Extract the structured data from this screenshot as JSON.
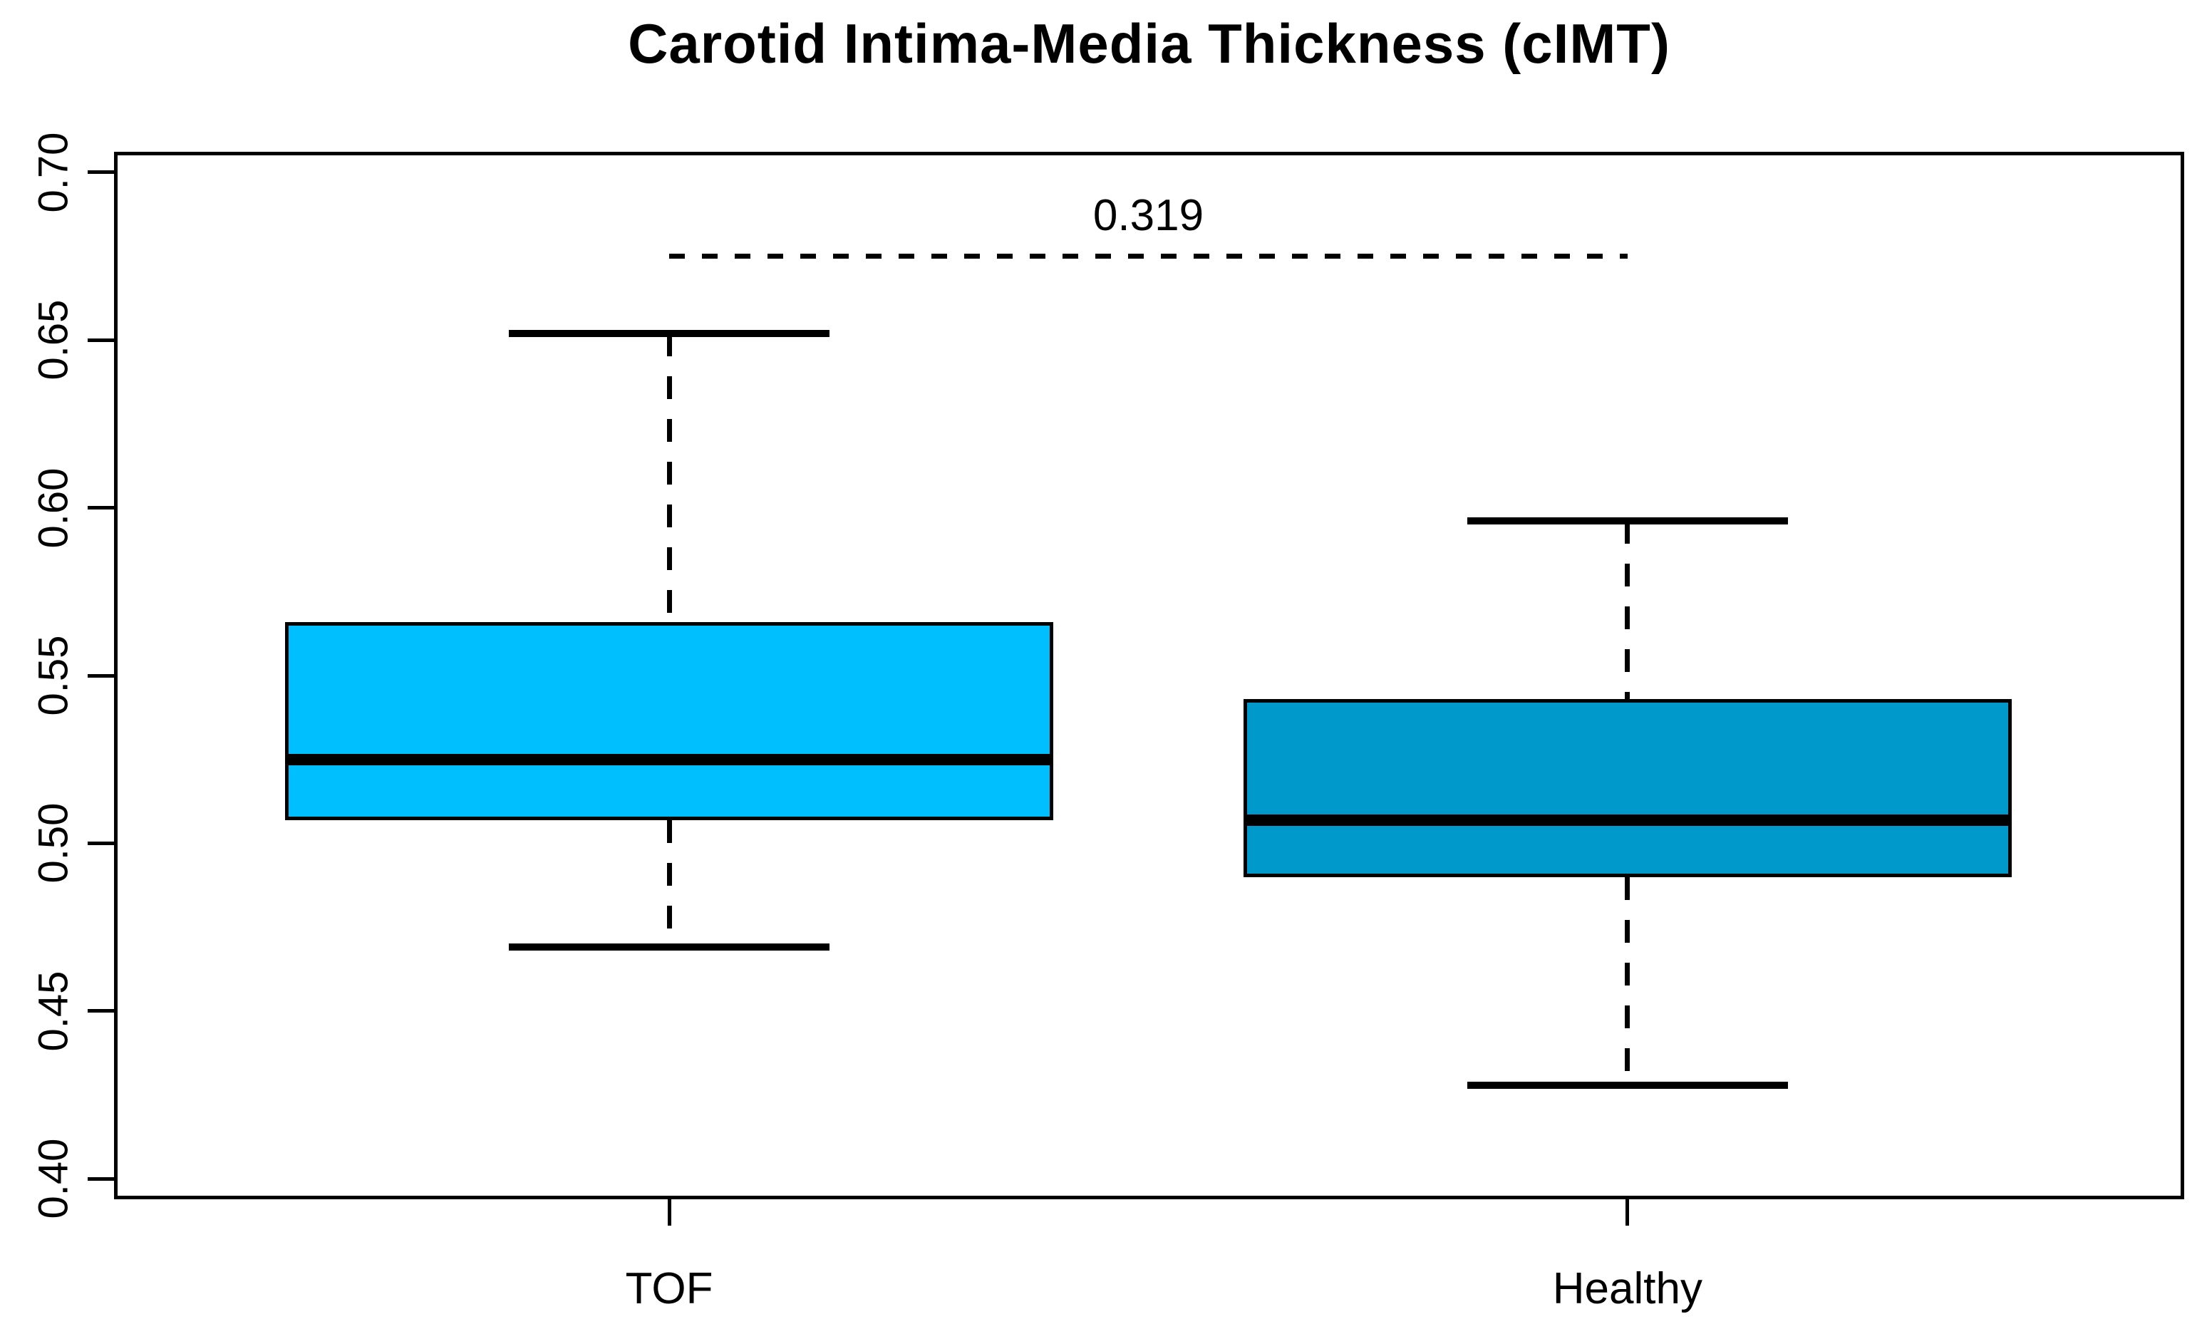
{
  "chart_data": {
    "type": "boxplot",
    "title": "Carotid Intima-Media Thickness (cIMT)",
    "xlabel": "",
    "ylabel": "",
    "ylim": [
      0.395,
      0.705
    ],
    "yticks": [
      0.7,
      0.65,
      0.6,
      0.55,
      0.5,
      0.45,
      0.4
    ],
    "ytick_labels": [
      "0.70",
      "0.65",
      "0.60",
      "0.55",
      "0.50",
      "0.45",
      "0.40"
    ],
    "categories": [
      "TOF",
      "Healthy"
    ],
    "series": [
      {
        "name": "TOF",
        "whisker_low": 0.469,
        "q1": 0.507,
        "median": 0.525,
        "q3": 0.566,
        "whisker_high": 0.652,
        "fill": "#00BFFF"
      },
      {
        "name": "Healthy",
        "whisker_low": 0.428,
        "q1": 0.49,
        "median": 0.507,
        "q3": 0.543,
        "whisker_high": 0.596,
        "fill": "#0099CC"
      }
    ],
    "comparison": {
      "label": "0.319",
      "y": 0.675,
      "between": [
        0,
        1
      ]
    },
    "layout": {
      "x_centers": [
        0.2674,
        0.7319
      ],
      "box_width": 0.3724,
      "cap_width": 0.1554,
      "grid": false,
      "legend": false,
      "border_color": "#000000",
      "background": "#FFFFFF"
    }
  }
}
